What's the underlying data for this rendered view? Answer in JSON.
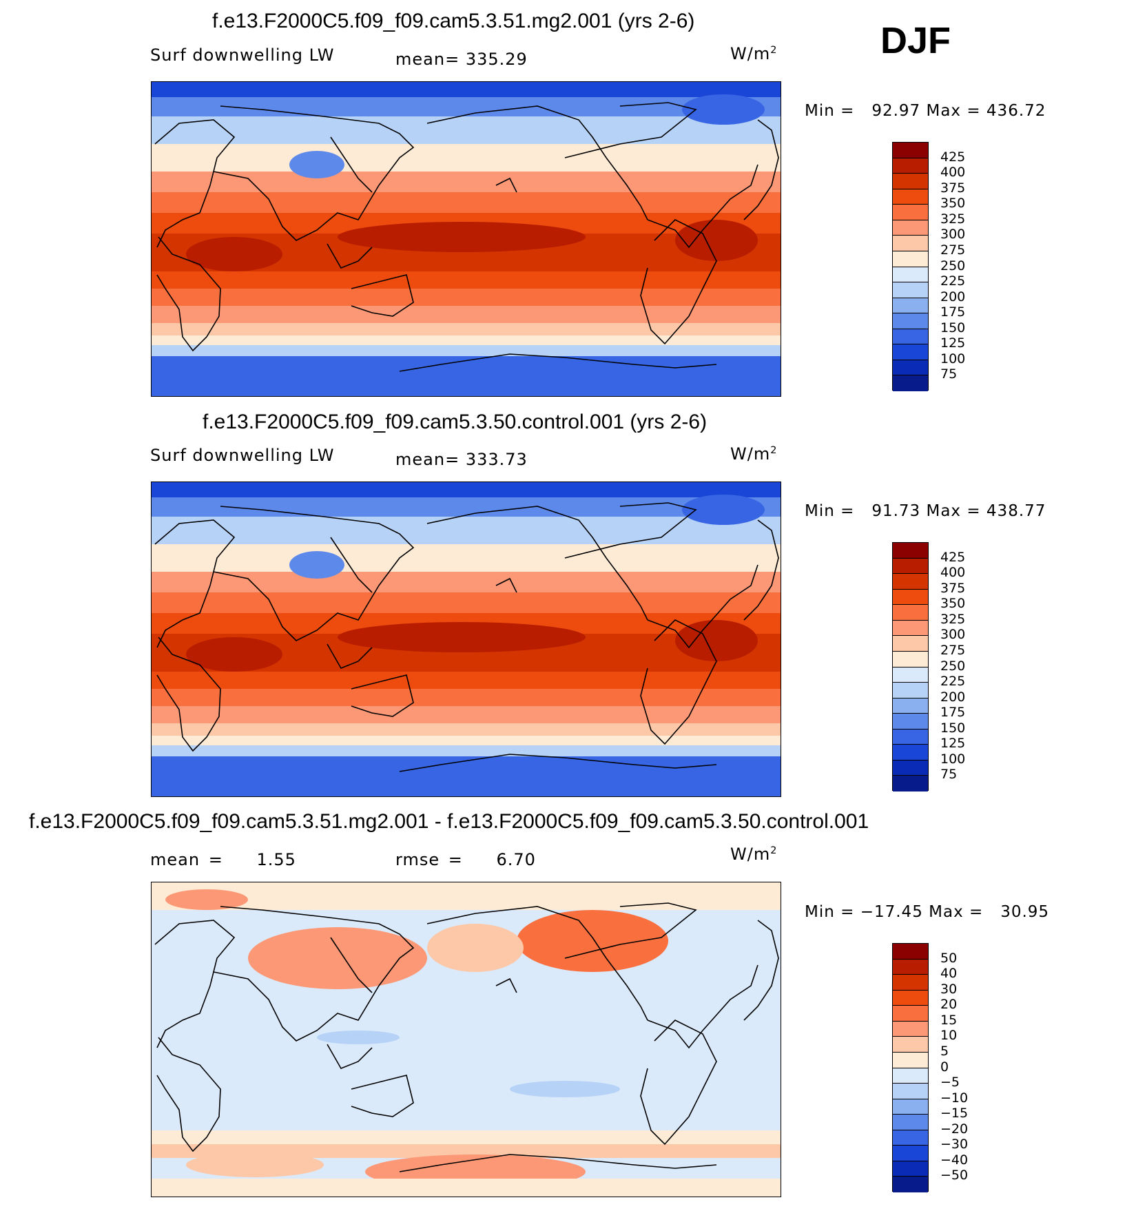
{
  "season": "DJF",
  "units": "W/m",
  "units_exp": "2",
  "panels": [
    {
      "title": "f.e13.F2000C5.f09_f09.cam5.3.51.mg2.001 (yrs 2-6)",
      "variable": "Surf downwelling LW",
      "stat_label": "mean=",
      "stat_value": "335.29",
      "minmax": "Min =   92.97 Max = 436.72",
      "map_type": "field"
    },
    {
      "title": "f.e13.F2000C5.f09_f09.cam5.3.50.control.001 (yrs 2-6)",
      "variable": "Surf downwelling LW",
      "stat_label": "mean=",
      "stat_value": "333.73",
      "minmax": "Min =   91.73 Max = 438.77",
      "map_type": "field"
    },
    {
      "title": "f.e13.F2000C5.f09_f09.cam5.3.51.mg2.001 - f.e13.F2000C5.f09_f09.cam5.3.50.control.001",
      "mean_label": "mean =",
      "mean_value": "1.55",
      "rmse_label": "rmse =",
      "rmse_value": "6.70",
      "minmax": "Min = −17.45 Max =   30.95",
      "map_type": "diff"
    }
  ],
  "colorbars": {
    "field": {
      "colors": [
        "#8b0000",
        "#b81d00",
        "#d43500",
        "#ee4b0e",
        "#f9703e",
        "#fc9875",
        "#fdc8a8",
        "#fdebd6",
        "#dbeafb",
        "#b6d2f7",
        "#8bb0f0",
        "#5d89eb",
        "#3765e3",
        "#1a46d8",
        "#0a2bb5",
        "#071c8a"
      ],
      "labels": [
        "425",
        "400",
        "375",
        "350",
        "325",
        "300",
        "275",
        "250",
        "225",
        "200",
        "175",
        "150",
        "125",
        "100",
        "75"
      ]
    },
    "diff": {
      "colors": [
        "#8b0000",
        "#b81d00",
        "#d43500",
        "#ee4b0e",
        "#f9703e",
        "#fc9875",
        "#fdc8a8",
        "#fdebd6",
        "#dbeafb",
        "#b6d2f7",
        "#8bb0f0",
        "#5d89eb",
        "#3765e3",
        "#1a46d8",
        "#0a2bb5",
        "#071c8a"
      ],
      "labels": [
        "50",
        "40",
        "30",
        "20",
        "15",
        "10",
        "5",
        "0",
        "−5",
        "−10",
        "−15",
        "−20",
        "−30",
        "−40",
        "−50"
      ]
    }
  }
}
